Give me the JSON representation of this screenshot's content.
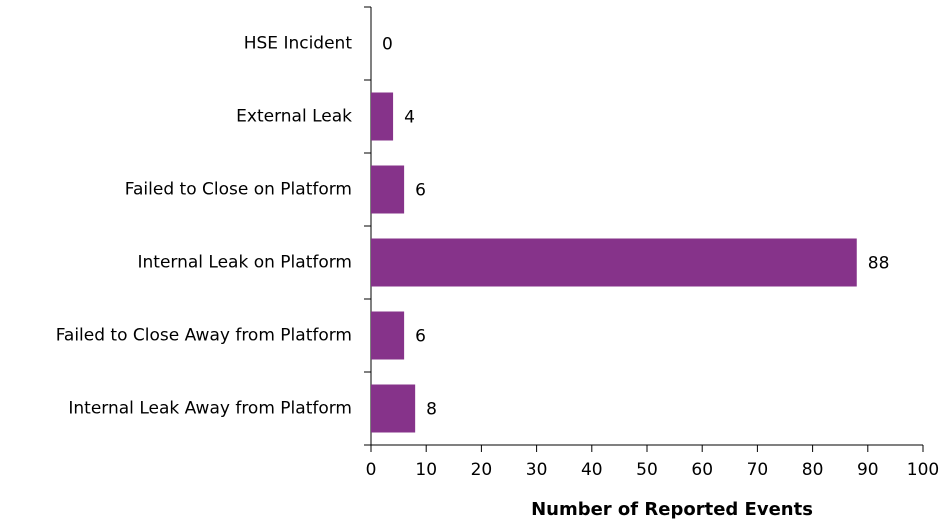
{
  "chart_data": {
    "type": "barh",
    "categories": [
      "HSE Incident",
      "External Leak",
      "Failed to Close on Platform",
      "Internal Leak on Platform",
      "Failed to Close Away from Platform",
      "Internal Leak Away from Platform"
    ],
    "values": [
      0,
      4,
      6,
      88,
      6,
      8
    ],
    "color": "#86338a",
    "xlabel": "Number of Reported Events",
    "xlim": [
      0,
      100
    ],
    "xticks": [
      0,
      10,
      20,
      30,
      40,
      50,
      60,
      70,
      80,
      90,
      100
    ],
    "grid": false
  }
}
